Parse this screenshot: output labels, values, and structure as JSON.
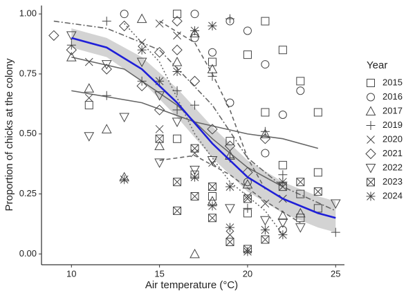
{
  "chart_data": {
    "type": "scatter",
    "x_label": "Air temperature (°C)",
    "y_label": "Proportion of chicks at the colony",
    "xlim": [
      8.3,
      25.5
    ],
    "ylim": [
      -0.045,
      1.035
    ],
    "xticks": [
      10,
      15,
      20,
      25
    ],
    "yticks": [
      {
        "value": 0,
        "label": "0.00"
      },
      {
        "value": 0.25,
        "label": "0.25"
      },
      {
        "value": 0.5,
        "label": "0.50"
      },
      {
        "value": 0.75,
        "label": "0.75"
      },
      {
        "value": 1,
        "label": "1.00"
      }
    ],
    "legend_title": "Year",
    "legend": "right",
    "series": [
      {
        "name": "2015",
        "marker": "square",
        "color": "#444444",
        "x": [
          11,
          16,
          17,
          18,
          19,
          20,
          20,
          21,
          21,
          22,
          22,
          23,
          23,
          23,
          24,
          24,
          24,
          16,
          18
        ],
        "values": [
          0.62,
          0.48,
          0.33,
          0.8,
          0.47,
          0.83,
          0.17,
          0.97,
          0.59,
          0.85,
          0.37,
          0.72,
          0.25,
          0.15,
          0.59,
          0.34,
          0.19,
          1.0,
          0.24
        ]
      },
      {
        "name": "2016",
        "marker": "circle",
        "color": "#444444",
        "x": [
          17,
          17,
          18,
          19,
          19,
          20,
          20,
          21,
          21,
          22,
          22,
          23,
          13
        ],
        "values": [
          1.0,
          0.9,
          0.84,
          0.97,
          0.63,
          0.93,
          0.3,
          0.79,
          0.42,
          0.58,
          0.1,
          0.68,
          1.0
        ]
      },
      {
        "name": "2017",
        "marker": "triangle",
        "color": "#444444",
        "x": [
          10,
          11,
          12,
          13,
          15,
          16,
          17,
          17,
          18,
          18,
          19,
          20,
          21,
          22,
          23,
          14
        ],
        "values": [
          0.82,
          0.69,
          0.52,
          0.32,
          0.45,
          0.8,
          0.92,
          0.0,
          0.22,
          0.77,
          0.41,
          0.29,
          0.5,
          0.16,
          0.17,
          0.98
        ]
      },
      {
        "name": "2019",
        "marker": "plus",
        "color": "#444444",
        "x": [
          10,
          12,
          14,
          16,
          16,
          17,
          18,
          19,
          20,
          21,
          22,
          25,
          19,
          12
        ],
        "values": [
          0.87,
          0.66,
          0.72,
          0.68,
          0.6,
          0.62,
          0.74,
          0.4,
          0.19,
          0.51,
          0.33,
          0.09,
          0.98,
          0.97
        ]
      },
      {
        "name": "2020",
        "marker": "cross",
        "color": "#444444",
        "x": [
          11,
          11,
          14,
          15,
          15,
          16,
          17,
          18,
          19,
          20,
          21,
          22
        ],
        "values": [
          0.8,
          0.65,
          0.88,
          0.52,
          0.96,
          0.91,
          0.42,
          0.38,
          0.08,
          0.24,
          0.21,
          0.23
        ]
      },
      {
        "name": "2021",
        "marker": "diamond",
        "color": "#444444",
        "x": [
          9,
          10,
          12,
          13,
          14,
          15,
          15,
          16,
          16,
          17,
          18,
          19,
          20,
          21
        ],
        "values": [
          0.91,
          0.85,
          0.77,
          0.95,
          0.7,
          0.84,
          0.6,
          0.85,
          0.97,
          0.72,
          0.52,
          0.45,
          0.34,
          0.48
        ]
      },
      {
        "name": "2022",
        "marker": "down",
        "color": "#444444",
        "x": [
          10,
          11,
          12,
          13,
          14,
          15,
          15,
          16,
          17,
          18,
          19,
          21,
          22,
          23,
          25
        ],
        "values": [
          0.91,
          0.49,
          0.79,
          0.57,
          0.8,
          0.66,
          0.38,
          0.55,
          0.35,
          0.39,
          0.19,
          0.14,
          0.13,
          0.11,
          0.21
        ]
      },
      {
        "name": "2023",
        "marker": "boxx",
        "color": "#444444",
        "x": [
          15,
          16,
          16,
          17,
          18,
          18,
          19,
          20,
          20,
          21,
          22,
          23,
          24,
          17
        ],
        "values": [
          0.48,
          0.18,
          0.3,
          0.44,
          0.15,
          0.28,
          0.05,
          0.23,
          0.02,
          0.06,
          0.28,
          0.3,
          0.26,
          0.24
        ]
      },
      {
        "name": "2024",
        "marker": "star",
        "color": "#444444",
        "x": [
          13,
          14,
          15,
          16,
          17,
          17,
          18,
          18,
          19,
          19,
          20,
          21,
          22,
          22
        ],
        "values": [
          0.31,
          0.85,
          0.72,
          0.76,
          0.93,
          0.32,
          0.2,
          0.95,
          0.11,
          0.28,
          0.01,
          0.1,
          0.08,
          0.3
        ]
      }
    ],
    "band": {
      "color": "#c8c8c8",
      "x": [
        10,
        12,
        14,
        16,
        18,
        20,
        22,
        24,
        25
      ],
      "upper": [
        0.94,
        0.9,
        0.82,
        0.69,
        0.53,
        0.39,
        0.3,
        0.24,
        0.22
      ],
      "lower": [
        0.86,
        0.82,
        0.72,
        0.57,
        0.4,
        0.26,
        0.17,
        0.11,
        0.09
      ]
    },
    "fit": {
      "color": "#1f1fd8",
      "x": [
        10,
        12,
        14,
        16,
        18,
        20,
        22,
        24,
        25
      ],
      "values": [
        0.9,
        0.86,
        0.77,
        0.63,
        0.46,
        0.32,
        0.23,
        0.17,
        0.15
      ]
    },
    "trends": [
      {
        "dash": "8 3 2 3",
        "x": [
          9,
          12,
          15,
          18,
          20,
          22,
          25
        ],
        "values": [
          0.97,
          0.94,
          0.85,
          0.62,
          0.4,
          0.28,
          0.18
        ]
      },
      {
        "dash": "none",
        "x": [
          10,
          14,
          17,
          20,
          22,
          24
        ],
        "values": [
          0.68,
          0.63,
          0.55,
          0.5,
          0.48,
          0.44
        ]
      },
      {
        "dash": "none",
        "x": [
          10,
          13,
          16,
          18,
          20,
          22
        ],
        "values": [
          0.82,
          0.77,
          0.62,
          0.48,
          0.36,
          0.28
        ]
      },
      {
        "dash": "6 4",
        "x": [
          15,
          17,
          19,
          21,
          23
        ],
        "values": [
          0.39,
          0.41,
          0.33,
          0.22,
          0.13
        ]
      },
      {
        "dash": "6 4",
        "x": [
          15,
          17,
          18,
          19,
          20,
          21
        ],
        "values": [
          0.97,
          0.88,
          0.75,
          0.6,
          0.4,
          0.27
        ]
      },
      {
        "dash": "2 3",
        "x": [
          13,
          15,
          17,
          19,
          21,
          22
        ],
        "values": [
          0.96,
          0.8,
          0.5,
          0.3,
          0.18,
          0.08
        ]
      }
    ]
  }
}
